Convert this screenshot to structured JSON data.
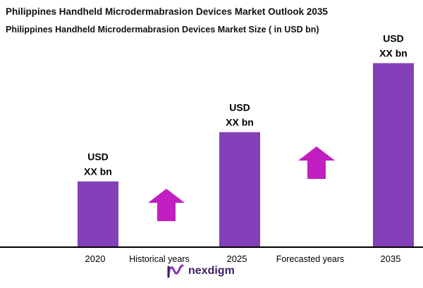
{
  "title": "Philippines Handheld Microdermabrasion Devices  Market Outlook 2035",
  "subtitle": "Philippines Handheld Microdermabrasion Devices  Market Size  ( in USD bn)",
  "brand": "nexdigm",
  "colors": {
    "bar": "#8440b8",
    "arrow": "#c11fc1",
    "axis": "#000000"
  },
  "chart_data": {
    "type": "bar",
    "categories": [
      "2020",
      "2025",
      "2035"
    ],
    "values": [
      100,
      175,
      280
    ],
    "value_labels": [
      {
        "line1": "USD",
        "line2": "XX bn"
      },
      {
        "line1": "USD",
        "line2": "XX bn"
      },
      {
        "line1": "USD",
        "line2": "XX bn"
      }
    ],
    "ylim": [
      0,
      300
    ],
    "grid": false,
    "annotations": [
      {
        "text": "Historical years",
        "between": [
          "2020",
          "2025"
        ],
        "icon": "up-arrow-icon"
      },
      {
        "text": "Forecasted years",
        "between": [
          "2025",
          "2035"
        ],
        "icon": "up-arrow-icon"
      }
    ]
  }
}
